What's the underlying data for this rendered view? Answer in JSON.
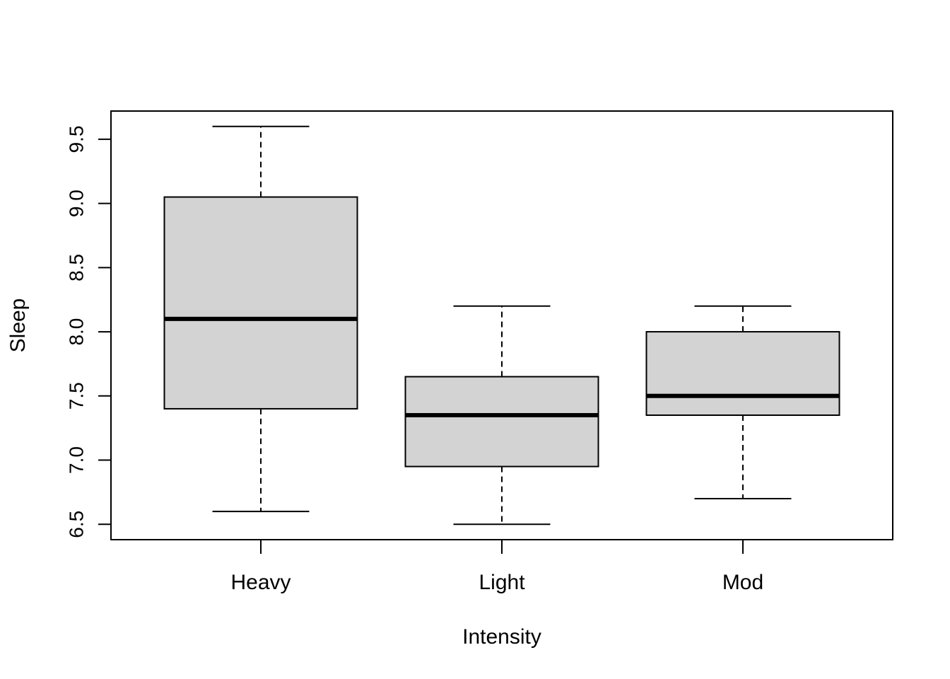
{
  "chart_data": {
    "type": "boxplot",
    "xlabel": "Intensity",
    "ylabel": "Sleep",
    "ylim": [
      6.38,
      9.72
    ],
    "yticks": [
      "6.5",
      "7.0",
      "7.5",
      "8.0",
      "8.5",
      "9.0",
      "9.5"
    ],
    "categories": [
      "Heavy",
      "Light",
      "Mod"
    ],
    "boxes": [
      {
        "category": "Heavy",
        "min": 6.6,
        "q1": 7.4,
        "median": 8.1,
        "q3": 9.05,
        "max": 9.6
      },
      {
        "category": "Light",
        "min": 6.5,
        "q1": 6.95,
        "median": 7.35,
        "q3": 7.65,
        "max": 8.2
      },
      {
        "category": "Mod",
        "min": 6.7,
        "q1": 7.35,
        "median": 7.5,
        "q3": 8.0,
        "max": 8.2
      }
    ],
    "box_fill": "#d3d3d3",
    "line_color": "#000000",
    "grid": false,
    "legend": "none"
  }
}
